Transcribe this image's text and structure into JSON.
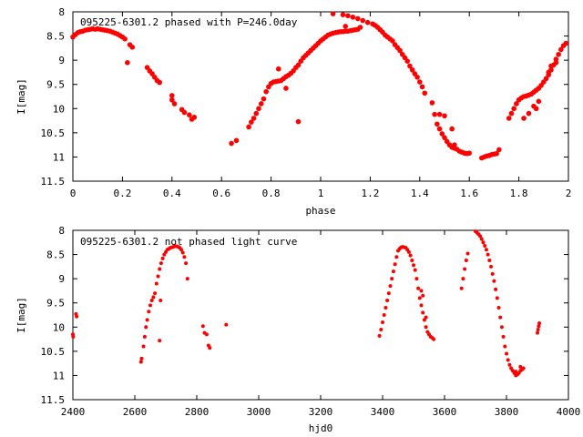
{
  "chart_data": [
    {
      "type": "scatter",
      "title": "095225-6301.2 phased with P=246.0day",
      "xlabel": "phase",
      "ylabel": "I[mag]",
      "xlim": [
        0,
        2
      ],
      "ylim": [
        11.5,
        8
      ],
      "y_inverted": true,
      "xticks": [
        "0",
        "0.2",
        "0.4",
        "0.6",
        "0.8",
        "1",
        "1.2",
        "1.4",
        "1.6",
        "1.8",
        "2"
      ],
      "xtick_values": [
        0,
        0.2,
        0.4,
        0.6,
        0.8,
        1.0,
        1.2,
        1.4,
        1.6,
        1.8,
        2.0
      ],
      "yticks": [
        "8",
        "8.5",
        "9",
        "9.5",
        "10",
        "10.5",
        "11",
        "11.5"
      ],
      "ytick_values": [
        8,
        8.5,
        9,
        9.5,
        10,
        10.5,
        11,
        11.5
      ],
      "grid": false,
      "marker": "filled-circle",
      "color": "#ff0000",
      "points": [
        [
          0.0,
          8.52
        ],
        [
          0.01,
          8.47
        ],
        [
          0.02,
          8.43
        ],
        [
          0.03,
          8.41
        ],
        [
          0.04,
          8.4
        ],
        [
          0.05,
          8.38
        ],
        [
          0.06,
          8.37
        ],
        [
          0.07,
          8.36
        ],
        [
          0.08,
          8.35
        ],
        [
          0.09,
          8.36
        ],
        [
          0.1,
          8.35
        ],
        [
          0.11,
          8.36
        ],
        [
          0.12,
          8.37
        ],
        [
          0.13,
          8.38
        ],
        [
          0.14,
          8.39
        ],
        [
          0.15,
          8.4
        ],
        [
          0.16,
          8.42
        ],
        [
          0.17,
          8.44
        ],
        [
          0.18,
          8.46
        ],
        [
          0.19,
          8.49
        ],
        [
          0.2,
          8.52
        ],
        [
          0.21,
          8.56
        ],
        [
          0.22,
          9.05
        ],
        [
          0.23,
          8.68
        ],
        [
          0.24,
          8.73
        ],
        [
          0.3,
          9.15
        ],
        [
          0.31,
          9.22
        ],
        [
          0.32,
          9.28
        ],
        [
          0.33,
          9.35
        ],
        [
          0.34,
          9.42
        ],
        [
          0.35,
          9.46
        ],
        [
          0.4,
          9.73
        ],
        [
          0.4,
          9.82
        ],
        [
          0.41,
          9.9
        ],
        [
          0.44,
          10.02
        ],
        [
          0.45,
          10.08
        ],
        [
          0.47,
          10.13
        ],
        [
          0.48,
          10.22
        ],
        [
          0.49,
          10.18
        ],
        [
          0.64,
          10.72
        ],
        [
          0.66,
          10.66
        ],
        [
          0.71,
          10.38
        ],
        [
          0.72,
          10.28
        ],
        [
          0.73,
          10.2
        ],
        [
          0.74,
          10.1
        ],
        [
          0.75,
          10.0
        ],
        [
          0.76,
          9.9
        ],
        [
          0.77,
          9.8
        ],
        [
          0.78,
          9.65
        ],
        [
          0.79,
          9.55
        ],
        [
          0.8,
          9.48
        ],
        [
          0.81,
          9.45
        ],
        [
          0.82,
          9.44
        ],
        [
          0.83,
          9.43
        ],
        [
          0.84,
          9.42
        ],
        [
          0.85,
          9.38
        ],
        [
          0.86,
          9.34
        ],
        [
          0.87,
          9.31
        ],
        [
          0.88,
          9.27
        ],
        [
          0.89,
          9.22
        ],
        [
          0.9,
          9.15
        ],
        [
          0.91,
          9.1
        ],
        [
          0.92,
          9.02
        ],
        [
          0.93,
          8.95
        ],
        [
          0.94,
          8.9
        ],
        [
          0.95,
          8.85
        ],
        [
          0.96,
          8.8
        ],
        [
          0.97,
          8.75
        ],
        [
          0.98,
          8.7
        ],
        [
          0.99,
          8.65
        ],
        [
          1.0,
          8.6
        ],
        [
          1.01,
          8.56
        ],
        [
          1.02,
          8.52
        ],
        [
          1.03,
          8.48
        ],
        [
          1.04,
          8.46
        ],
        [
          1.05,
          8.44
        ],
        [
          1.06,
          8.43
        ],
        [
          1.07,
          8.42
        ],
        [
          1.08,
          8.41
        ],
        [
          1.09,
          8.41
        ],
        [
          1.1,
          8.4
        ],
        [
          1.11,
          8.4
        ],
        [
          1.12,
          8.39
        ],
        [
          1.13,
          8.38
        ],
        [
          1.14,
          8.37
        ],
        [
          1.15,
          8.36
        ],
        [
          1.05,
          8.04
        ],
        [
          1.09,
          8.06
        ],
        [
          1.11,
          8.08
        ],
        [
          1.13,
          8.11
        ],
        [
          1.15,
          8.14
        ],
        [
          1.17,
          8.18
        ],
        [
          1.19,
          8.22
        ],
        [
          1.21,
          8.25
        ],
        [
          1.22,
          8.28
        ],
        [
          1.23,
          8.32
        ],
        [
          1.24,
          8.37
        ],
        [
          1.25,
          8.42
        ],
        [
          1.26,
          8.48
        ],
        [
          1.27,
          8.52
        ],
        [
          1.28,
          8.56
        ],
        [
          1.29,
          8.6
        ],
        [
          1.3,
          8.68
        ],
        [
          1.31,
          8.74
        ],
        [
          1.32,
          8.8
        ],
        [
          1.33,
          8.88
        ],
        [
          1.34,
          8.95
        ],
        [
          1.35,
          9.02
        ],
        [
          1.36,
          9.12
        ],
        [
          1.37,
          9.2
        ],
        [
          1.38,
          9.28
        ],
        [
          1.39,
          9.35
        ],
        [
          1.4,
          9.45
        ],
        [
          1.41,
          9.55
        ],
        [
          1.42,
          9.68
        ],
        [
          1.45,
          9.88
        ],
        [
          1.46,
          10.12
        ],
        [
          1.47,
          10.32
        ],
        [
          1.48,
          10.42
        ],
        [
          1.49,
          10.52
        ],
        [
          1.5,
          10.6
        ],
        [
          1.51,
          10.68
        ],
        [
          1.52,
          10.75
        ],
        [
          1.53,
          10.8
        ],
        [
          1.54,
          10.82
        ],
        [
          1.55,
          10.84
        ],
        [
          1.56,
          10.88
        ],
        [
          1.57,
          10.9
        ],
        [
          1.58,
          10.92
        ],
        [
          1.59,
          10.93
        ],
        [
          1.6,
          10.92
        ],
        [
          1.48,
          10.12
        ],
        [
          1.5,
          10.15
        ],
        [
          1.53,
          10.42
        ],
        [
          1.54,
          10.75
        ],
        [
          1.65,
          11.02
        ],
        [
          1.66,
          11.0
        ],
        [
          1.67,
          10.98
        ],
        [
          1.68,
          10.97
        ],
        [
          1.69,
          10.95
        ],
        [
          1.7,
          10.94
        ],
        [
          1.71,
          10.93
        ],
        [
          1.72,
          10.85
        ],
        [
          1.76,
          10.2
        ],
        [
          1.77,
          10.1
        ],
        [
          1.78,
          10.0
        ],
        [
          1.79,
          9.9
        ],
        [
          1.8,
          9.82
        ],
        [
          1.81,
          9.78
        ],
        [
          1.82,
          9.75
        ],
        [
          1.83,
          9.74
        ],
        [
          1.84,
          9.72
        ],
        [
          1.85,
          9.7
        ],
        [
          1.86,
          9.66
        ],
        [
          1.87,
          9.62
        ],
        [
          1.88,
          9.58
        ],
        [
          1.89,
          9.52
        ],
        [
          1.9,
          9.45
        ],
        [
          1.91,
          9.38
        ],
        [
          1.92,
          9.3
        ],
        [
          1.93,
          9.2
        ],
        [
          1.94,
          9.1
        ],
        [
          1.95,
          8.98
        ],
        [
          1.96,
          8.88
        ],
        [
          1.97,
          8.78
        ],
        [
          1.98,
          8.7
        ],
        [
          1.99,
          8.65
        ],
        [
          0.91,
          10.27
        ],
        [
          0.83,
          9.18
        ],
        [
          0.86,
          9.58
        ],
        [
          1.82,
          10.2
        ],
        [
          1.84,
          10.1
        ],
        [
          1.86,
          9.95
        ],
        [
          1.87,
          10.0
        ],
        [
          1.88,
          9.85
        ],
        [
          1.92,
          9.25
        ],
        [
          1.93,
          9.12
        ],
        [
          1.95,
          9.05
        ],
        [
          1.1,
          8.3
        ],
        [
          1.16,
          8.32
        ]
      ]
    },
    {
      "type": "scatter",
      "title": "095225-6301.2 not phased light curve",
      "xlabel": "hjd0",
      "ylabel": "I[mag]",
      "xlim": [
        2400,
        4000
      ],
      "ylim": [
        11.5,
        8
      ],
      "y_inverted": true,
      "xticks": [
        "2400",
        "2600",
        "2800",
        "3000",
        "3200",
        "3400",
        "3600",
        "3800",
        "4000"
      ],
      "xtick_values": [
        2400,
        2600,
        2800,
        3000,
        3200,
        3400,
        3600,
        3800,
        4000
      ],
      "yticks": [
        "8",
        "8.5",
        "9",
        "9.5",
        "10",
        "10.5",
        "11",
        "11.5"
      ],
      "ytick_values": [
        8,
        8.5,
        9,
        9.5,
        10,
        10.5,
        11,
        11.5
      ],
      "grid": false,
      "marker": "filled-circle",
      "color": "#ff0000",
      "points": [
        [
          2400,
          10.15
        ],
        [
          2401,
          10.2
        ],
        [
          2410,
          9.73
        ],
        [
          2412,
          9.78
        ],
        [
          2620,
          10.72
        ],
        [
          2622,
          10.65
        ],
        [
          2628,
          10.4
        ],
        [
          2632,
          10.2
        ],
        [
          2636,
          10.0
        ],
        [
          2640,
          9.85
        ],
        [
          2645,
          9.68
        ],
        [
          2650,
          9.55
        ],
        [
          2655,
          9.45
        ],
        [
          2660,
          9.38
        ],
        [
          2665,
          9.3
        ],
        [
          2670,
          9.1
        ],
        [
          2675,
          8.95
        ],
        [
          2680,
          8.8
        ],
        [
          2685,
          8.68
        ],
        [
          2690,
          8.58
        ],
        [
          2695,
          8.5
        ],
        [
          2700,
          8.45
        ],
        [
          2705,
          8.4
        ],
        [
          2710,
          8.38
        ],
        [
          2715,
          8.36
        ],
        [
          2720,
          8.35
        ],
        [
          2725,
          8.34
        ],
        [
          2730,
          8.33
        ],
        [
          2735,
          8.33
        ],
        [
          2740,
          8.34
        ],
        [
          2745,
          8.36
        ],
        [
          2750,
          8.4
        ],
        [
          2755,
          8.46
        ],
        [
          2760,
          8.55
        ],
        [
          2765,
          8.68
        ],
        [
          2770,
          9.0
        ],
        [
          2680,
          10.28
        ],
        [
          2683,
          9.45
        ],
        [
          2820,
          9.98
        ],
        [
          2825,
          10.12
        ],
        [
          2832,
          10.15
        ],
        [
          2838,
          10.38
        ],
        [
          2842,
          10.43
        ],
        [
          2895,
          9.95
        ],
        [
          3390,
          10.18
        ],
        [
          3395,
          10.05
        ],
        [
          3400,
          9.9
        ],
        [
          3405,
          9.75
        ],
        [
          3410,
          9.6
        ],
        [
          3415,
          9.45
        ],
        [
          3420,
          9.3
        ],
        [
          3425,
          9.15
        ],
        [
          3430,
          9.0
        ],
        [
          3435,
          8.85
        ],
        [
          3440,
          8.7
        ],
        [
          3445,
          8.55
        ],
        [
          3450,
          8.42
        ],
        [
          3455,
          8.38
        ],
        [
          3460,
          8.35
        ],
        [
          3465,
          8.34
        ],
        [
          3470,
          8.35
        ],
        [
          3475,
          8.36
        ],
        [
          3480,
          8.4
        ],
        [
          3485,
          8.45
        ],
        [
          3490,
          8.52
        ],
        [
          3495,
          8.62
        ],
        [
          3500,
          8.72
        ],
        [
          3505,
          8.82
        ],
        [
          3510,
          9.0
        ],
        [
          3515,
          9.2
        ],
        [
          3520,
          9.4
        ],
        [
          3525,
          9.55
        ],
        [
          3530,
          9.7
        ],
        [
          3535,
          9.85
        ],
        [
          3540,
          10.0
        ],
        [
          3545,
          10.1
        ],
        [
          3550,
          10.15
        ],
        [
          3555,
          10.2
        ],
        [
          3560,
          10.22
        ],
        [
          3565,
          10.25
        ],
        [
          3525,
          9.25
        ],
        [
          3530,
          9.35
        ],
        [
          3540,
          9.8
        ],
        [
          3655,
          9.2
        ],
        [
          3660,
          9.0
        ],
        [
          3665,
          8.8
        ],
        [
          3670,
          8.62
        ],
        [
          3675,
          8.48
        ],
        [
          3700,
          8.02
        ],
        [
          3705,
          8.05
        ],
        [
          3710,
          8.08
        ],
        [
          3715,
          8.12
        ],
        [
          3720,
          8.18
        ],
        [
          3725,
          8.25
        ],
        [
          3730,
          8.32
        ],
        [
          3735,
          8.4
        ],
        [
          3740,
          8.5
        ],
        [
          3745,
          8.62
        ],
        [
          3750,
          8.75
        ],
        [
          3755,
          8.9
        ],
        [
          3760,
          9.05
        ],
        [
          3765,
          9.22
        ],
        [
          3770,
          9.4
        ],
        [
          3775,
          9.6
        ],
        [
          3780,
          9.8
        ],
        [
          3785,
          10.0
        ],
        [
          3790,
          10.2
        ],
        [
          3795,
          10.4
        ],
        [
          3800,
          10.55
        ],
        [
          3805,
          10.68
        ],
        [
          3810,
          10.78
        ],
        [
          3815,
          10.85
        ],
        [
          3820,
          10.9
        ],
        [
          3825,
          10.95
        ],
        [
          3830,
          11.0
        ],
        [
          3835,
          10.98
        ],
        [
          3840,
          10.95
        ],
        [
          3845,
          10.9
        ],
        [
          3850,
          10.88
        ],
        [
          3855,
          10.85
        ],
        [
          3900,
          10.12
        ],
        [
          3902,
          10.05
        ],
        [
          3904,
          9.98
        ],
        [
          3906,
          9.92
        ],
        [
          3830,
          10.92
        ],
        [
          3845,
          10.82
        ]
      ]
    }
  ]
}
